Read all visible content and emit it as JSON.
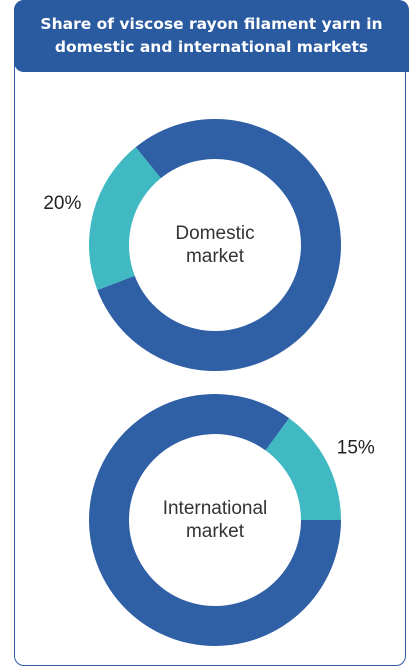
{
  "title": "Share of viscose rayon filament yarn in domestic and international markets",
  "chart_data": [
    {
      "type": "donut",
      "center_label": "Domestic market",
      "values": [
        20,
        80
      ],
      "value_labels": [
        "20%",
        null
      ],
      "colors": [
        "#41b9c3",
        "#2f5fa5"
      ]
    },
    {
      "type": "donut",
      "center_label": "International market",
      "values": [
        15,
        85
      ],
      "value_labels": [
        "15%",
        null
      ],
      "colors": [
        "#41b9c3",
        "#2f5fa5"
      ]
    }
  ]
}
